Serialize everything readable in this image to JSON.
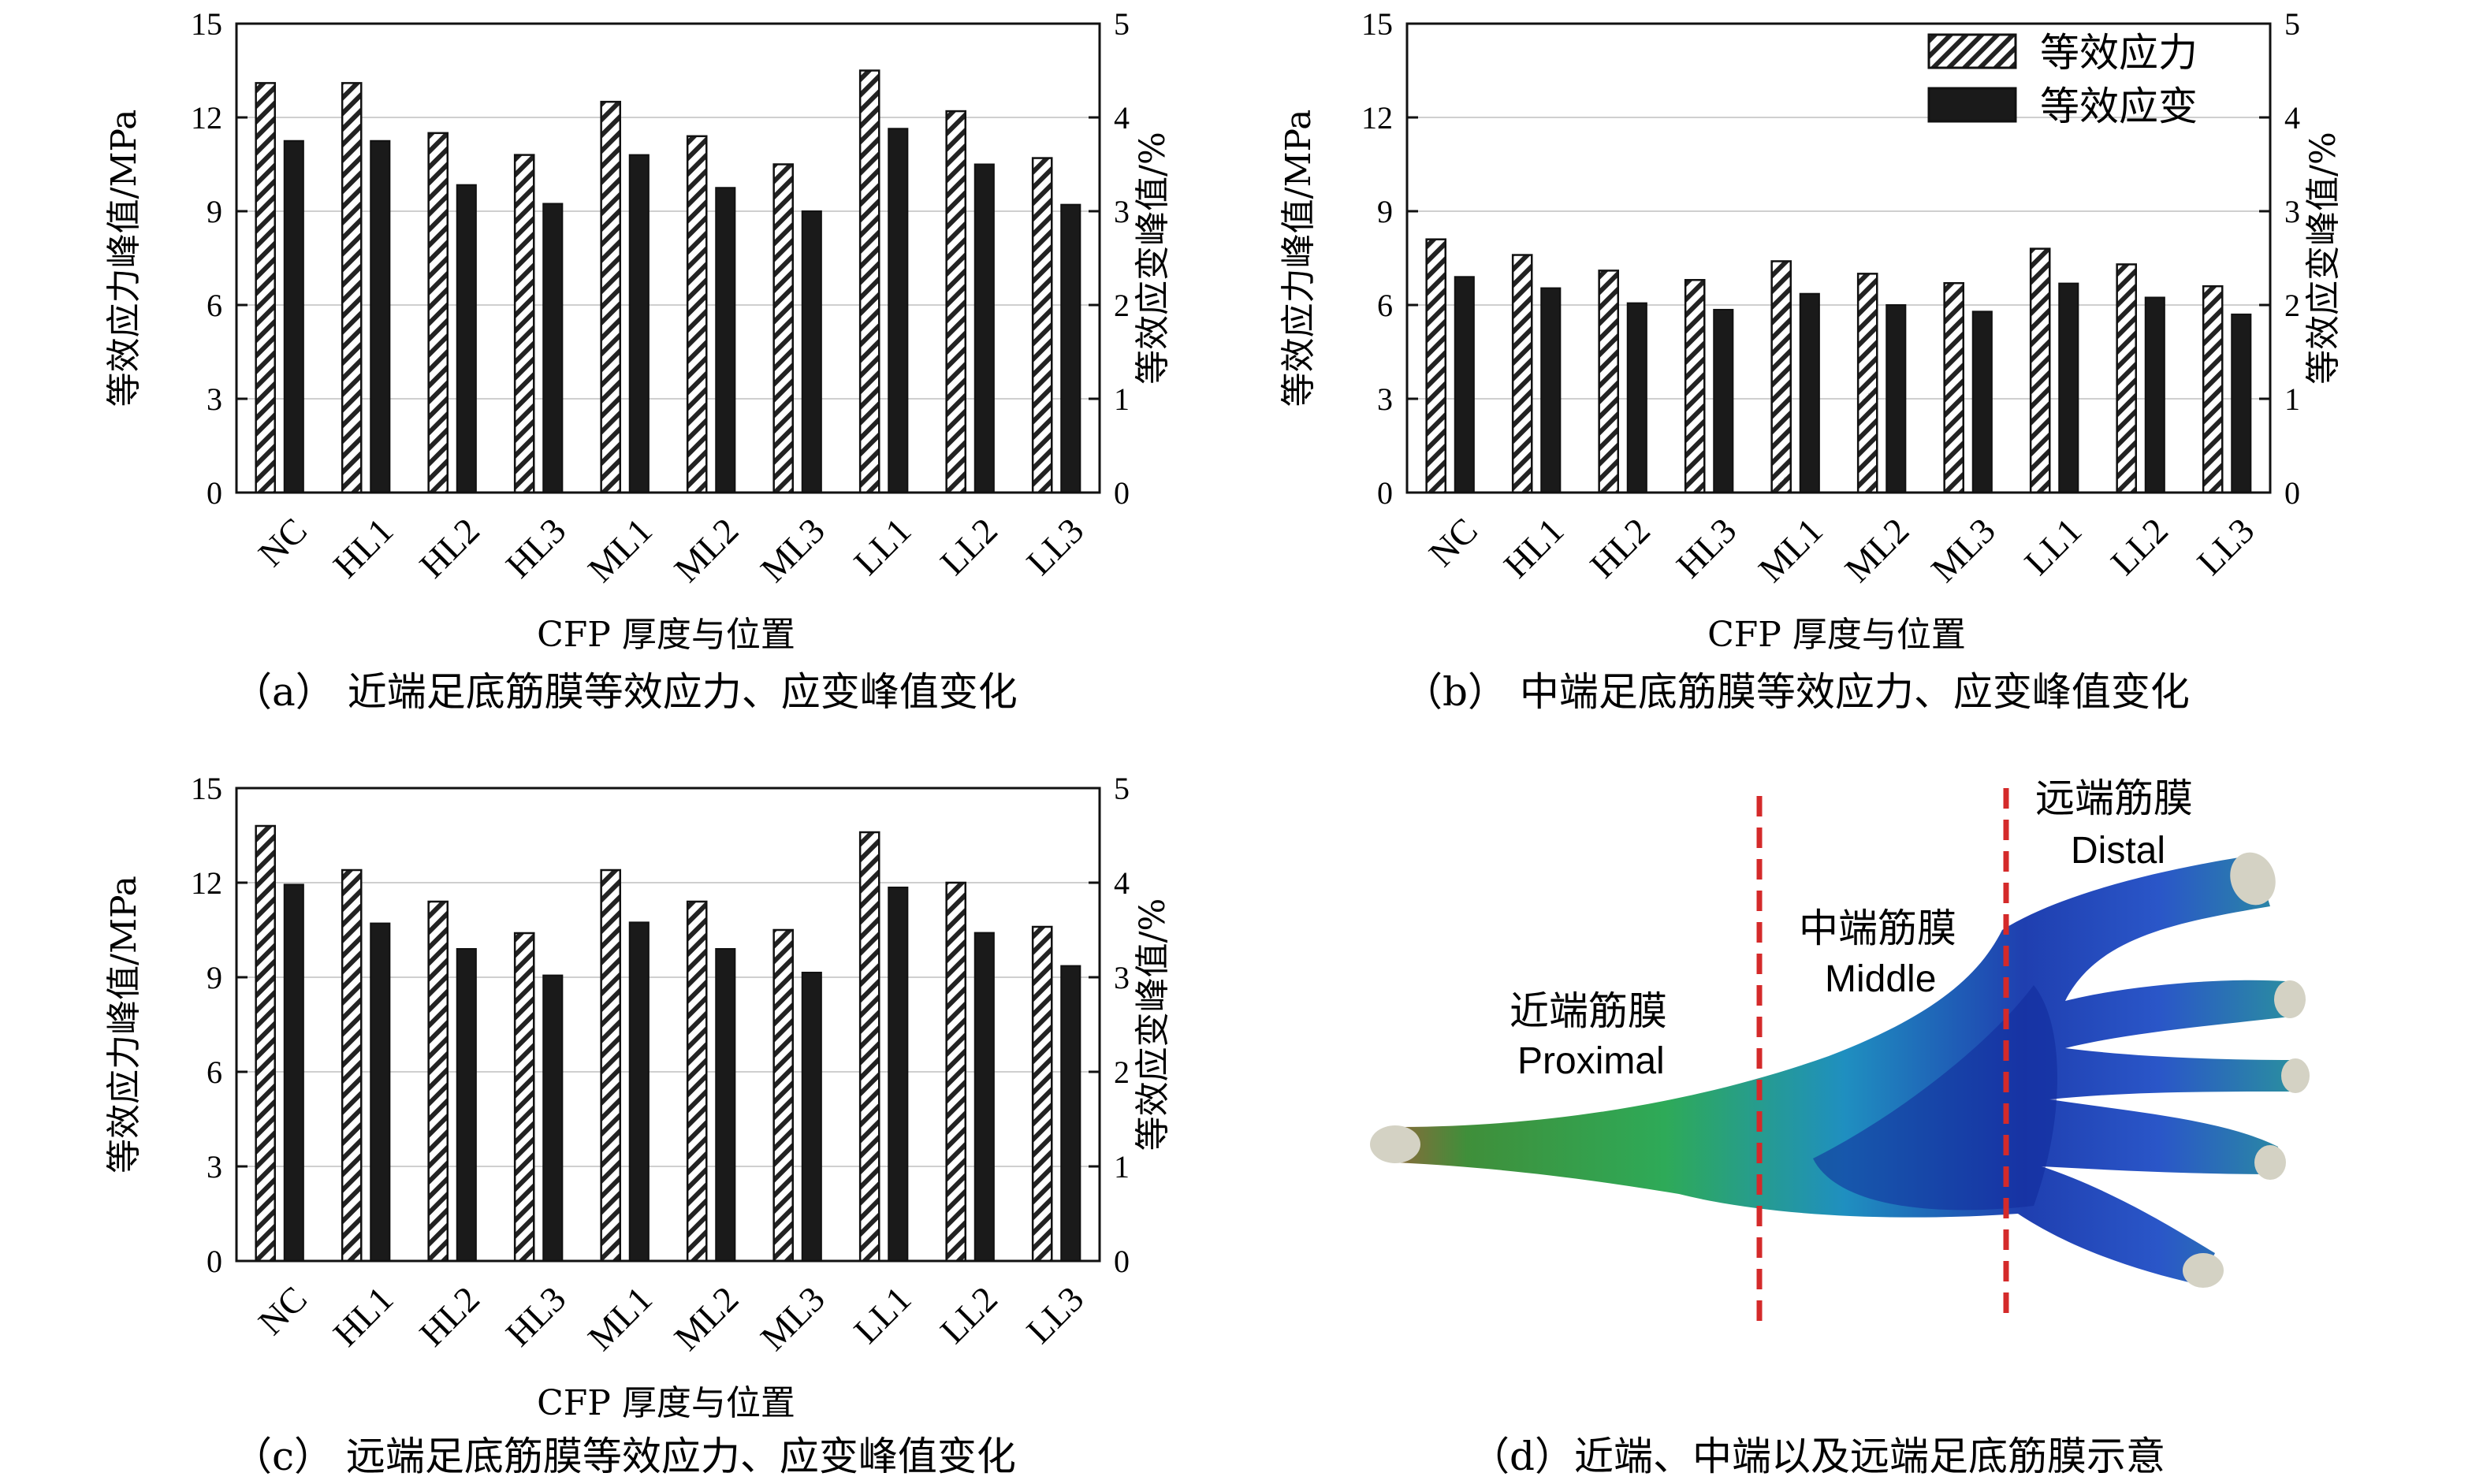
{
  "legend": {
    "stress": "等效应力",
    "strain": "等效应变"
  },
  "chart_data": [
    {
      "id": "a",
      "type": "bar",
      "caption": "（a） 近端足底筋膜等效应力、应变峰值变化",
      "xlabel": "CFP 厚度与位置",
      "ylabel": "等效应力峰值/MPa",
      "y2label": "等效应变峰值/%",
      "ylim": [
        0,
        15
      ],
      "y2lim": [
        0,
        5
      ],
      "yticks": [
        0,
        3,
        6,
        9,
        12,
        15
      ],
      "y2ticks": [
        0,
        1,
        2,
        3,
        4,
        5
      ],
      "grid": true,
      "categories": [
        "NC",
        "HL1",
        "HL2",
        "HL3",
        "ML1",
        "ML2",
        "ML3",
        "LL1",
        "LL2",
        "LL3"
      ],
      "series": [
        {
          "name": "等效应力",
          "axis": "left",
          "values": [
            13.1,
            13.1,
            11.5,
            10.8,
            12.5,
            11.4,
            10.5,
            13.5,
            12.2,
            10.7
          ]
        },
        {
          "name": "等效应变",
          "axis": "right",
          "values": [
            3.75,
            3.75,
            3.28,
            3.08,
            3.6,
            3.25,
            3.0,
            3.88,
            3.5,
            3.07
          ]
        }
      ]
    },
    {
      "id": "b",
      "type": "bar",
      "caption": "（b） 中端足底筋膜等效应力、应变峰值变化",
      "xlabel": "CFP 厚度与位置",
      "ylabel": "等效应力峰值/MPa",
      "y2label": "等效应变峰值/%",
      "ylim": [
        0,
        15
      ],
      "y2lim": [
        0,
        5
      ],
      "yticks": [
        0,
        3,
        6,
        9,
        12,
        15
      ],
      "y2ticks": [
        0,
        1,
        2,
        3,
        4,
        5
      ],
      "grid": true,
      "legend_position": "top-right",
      "categories": [
        "NC",
        "HL1",
        "HL2",
        "HL3",
        "ML1",
        "ML2",
        "ML3",
        "LL1",
        "LL2",
        "LL3"
      ],
      "series": [
        {
          "name": "等效应力",
          "axis": "left",
          "values": [
            8.1,
            7.6,
            7.1,
            6.8,
            7.4,
            7.0,
            6.7,
            7.8,
            7.3,
            6.6
          ]
        },
        {
          "name": "等效应变",
          "axis": "right",
          "values": [
            2.3,
            2.18,
            2.02,
            1.95,
            2.12,
            2.0,
            1.93,
            2.23,
            2.08,
            1.9
          ]
        }
      ]
    },
    {
      "id": "c",
      "type": "bar",
      "caption": "（c） 远端足底筋膜等效应力、应变峰值变化",
      "xlabel": "CFP 厚度与位置",
      "ylabel": "等效应力峰值/MPa",
      "y2label": "等效应变峰值/%",
      "ylim": [
        0,
        15
      ],
      "y2lim": [
        0,
        5
      ],
      "yticks": [
        0,
        3,
        6,
        9,
        12,
        15
      ],
      "y2ticks": [
        0,
        1,
        2,
        3,
        4,
        5
      ],
      "grid": true,
      "categories": [
        "NC",
        "HL1",
        "HL2",
        "HL3",
        "ML1",
        "ML2",
        "ML3",
        "LL1",
        "LL2",
        "LL3"
      ],
      "series": [
        {
          "name": "等效应力",
          "axis": "left",
          "values": [
            13.8,
            12.4,
            11.4,
            10.4,
            12.4,
            11.4,
            10.5,
            13.6,
            12.0,
            10.6
          ]
        },
        {
          "name": "等效应变",
          "axis": "right",
          "values": [
            3.98,
            3.57,
            3.3,
            3.02,
            3.58,
            3.3,
            3.05,
            3.95,
            3.47,
            3.12
          ]
        }
      ]
    }
  ],
  "diagram_d": {
    "caption": "（d）近端、中端以及远端足底筋膜示意",
    "proximal_cn": "近端筋膜",
    "proximal_en": "Proximal",
    "middle_cn": "中端筋膜",
    "middle_en": "Middle",
    "distal_cn": "远端筋膜",
    "distal_en": "Distal",
    "divider_color": "#d42a2a"
  }
}
